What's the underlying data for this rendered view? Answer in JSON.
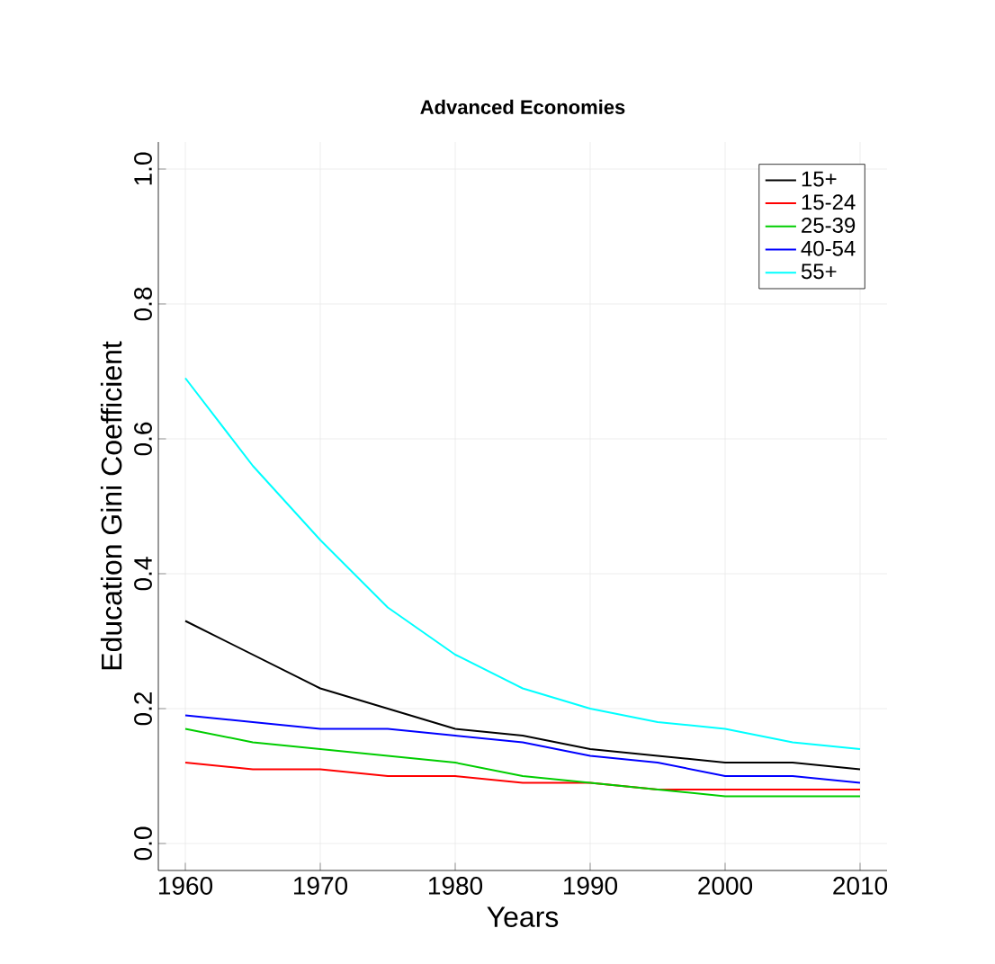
{
  "chart_data": {
    "type": "line",
    "title": "Advanced Economies",
    "xlabel": "Years",
    "ylabel": "Education Gini Coefficient",
    "x": [
      1960,
      1965,
      1970,
      1975,
      1980,
      1985,
      1990,
      1995,
      2000,
      2005,
      2010
    ],
    "series": [
      {
        "name": "15+",
        "color": "#000000",
        "values": [
          0.33,
          0.28,
          0.23,
          0.2,
          0.17,
          0.16,
          0.14,
          0.13,
          0.12,
          0.12,
          0.11
        ]
      },
      {
        "name": "15-24",
        "color": "#ff0000",
        "values": [
          0.12,
          0.11,
          0.11,
          0.1,
          0.1,
          0.09,
          0.09,
          0.08,
          0.08,
          0.08,
          0.08
        ]
      },
      {
        "name": "25-39",
        "color": "#00cd00",
        "values": [
          0.17,
          0.15,
          0.14,
          0.13,
          0.12,
          0.1,
          0.09,
          0.08,
          0.07,
          0.07,
          0.07
        ]
      },
      {
        "name": "40-54",
        "color": "#0000ff",
        "values": [
          0.19,
          0.18,
          0.17,
          0.17,
          0.16,
          0.15,
          0.13,
          0.12,
          0.1,
          0.1,
          0.09
        ]
      },
      {
        "name": "55+",
        "color": "#00ffff",
        "values": [
          0.69,
          0.56,
          0.45,
          0.35,
          0.28,
          0.23,
          0.2,
          0.18,
          0.17,
          0.15,
          0.14
        ]
      }
    ],
    "xlim": [
      1958,
      2012
    ],
    "ylim": [
      -0.04,
      1.04
    ],
    "xticks": [
      1960,
      1970,
      1980,
      1990,
      2000,
      2010
    ],
    "yticks": [
      {
        "value": 0,
        "label": "0.0"
      },
      {
        "value": 0.2,
        "label": "0.2"
      },
      {
        "value": 0.4,
        "label": "0.4"
      },
      {
        "value": 0.6,
        "label": "0.6"
      },
      {
        "value": 0.8,
        "label": "0.8"
      },
      {
        "value": 1,
        "label": "1.0"
      }
    ],
    "grid": true,
    "legend": "top right",
    "line_style": "solid",
    "marker": "none"
  }
}
